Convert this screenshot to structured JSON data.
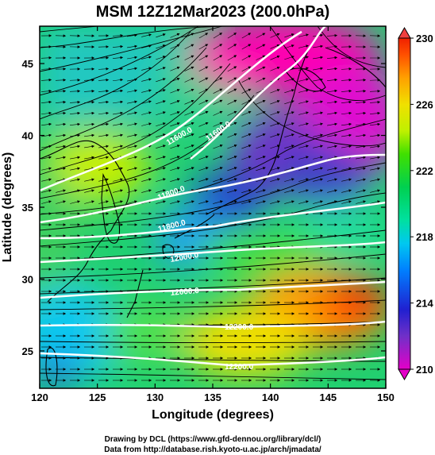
{
  "title": "MSM 12Z12Mar2023 (200.0hPa)",
  "xaxis": {
    "label": "Longitude (degrees)",
    "range": [
      120,
      150
    ],
    "ticks": [
      "120",
      "125",
      "130",
      "135",
      "140",
      "145",
      "150"
    ]
  },
  "yaxis": {
    "label": "Latitude  (degrees)",
    "range": [
      22.4,
      47.6
    ],
    "ticks": [
      "25",
      "30",
      "35",
      "40",
      "45"
    ]
  },
  "colorbar": {
    "range": [
      210,
      230
    ],
    "ticks": [
      "210",
      "214",
      "218",
      "222",
      "226",
      "230"
    ],
    "colors": [
      "#e400c8",
      "#7030c8",
      "#2020d0",
      "#0080ff",
      "#00c8f0",
      "#00e0a0",
      "#00d050",
      "#40e000",
      "#c0f000",
      "#f0e000",
      "#ffa000",
      "#ff5000",
      "#f02000"
    ]
  },
  "contours": [
    {
      "label": "11600.0"
    },
    {
      "label": "11600.0"
    },
    {
      "label": "11800.0"
    },
    {
      "label": "11800.0"
    },
    {
      "label": "12000.0"
    },
    {
      "label": "12000.0"
    },
    {
      "label": "12200.0"
    },
    {
      "label": "12200.0"
    }
  ],
  "credits": {
    "line1": "Drawing by DCL (https://www.gfd-dennou.org/library/dcl/)",
    "line2": "Data from http://database.rish.kyoto-u.ac.jp/arch/jmadata/"
  }
}
